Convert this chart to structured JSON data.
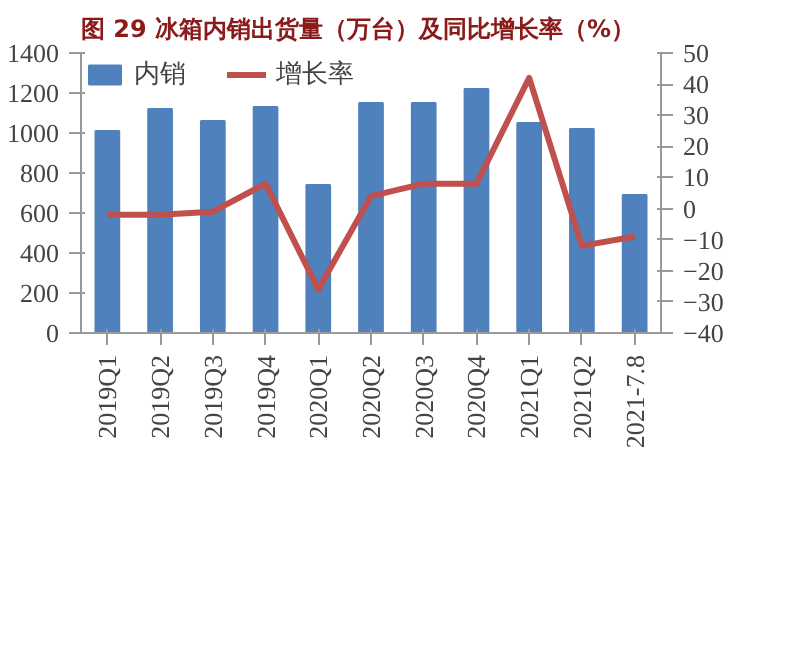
{
  "chart_data": {
    "type": "bar",
    "title": "图 29 冰箱内销出货量（万台）及同比增长率（%）",
    "categories": [
      "2019Q1",
      "2019Q2",
      "2019Q3",
      "2019Q4",
      "2020Q1",
      "2020Q2",
      "2020Q3",
      "2020Q4",
      "2021Q1",
      "2021Q2",
      "2021-7.8"
    ],
    "series": [
      {
        "name": "内销",
        "color": "#4f81bd",
        "values": [
          1010,
          1120,
          1060,
          1130,
          740,
          1150,
          1150,
          1220,
          1050,
          1020,
          690
        ]
      },
      {
        "name": "增长率",
        "color": "#c0504d",
        "type": "line",
        "axis": "y2",
        "values": [
          -2,
          -2,
          -1,
          8,
          -26,
          4,
          8,
          8,
          42,
          -12,
          -9
        ]
      }
    ],
    "ylim": [
      0,
      1400
    ],
    "yticks": [
      0,
      200,
      400,
      600,
      800,
      1000,
      1200,
      1400
    ],
    "y2lim": [
      -40,
      50
    ],
    "y2ticks": [
      -40,
      -30,
      -20,
      -10,
      0,
      10,
      20,
      30,
      40,
      50
    ],
    "grid": false,
    "legend": "top left",
    "marker": "none",
    "line_style": "solid"
  }
}
